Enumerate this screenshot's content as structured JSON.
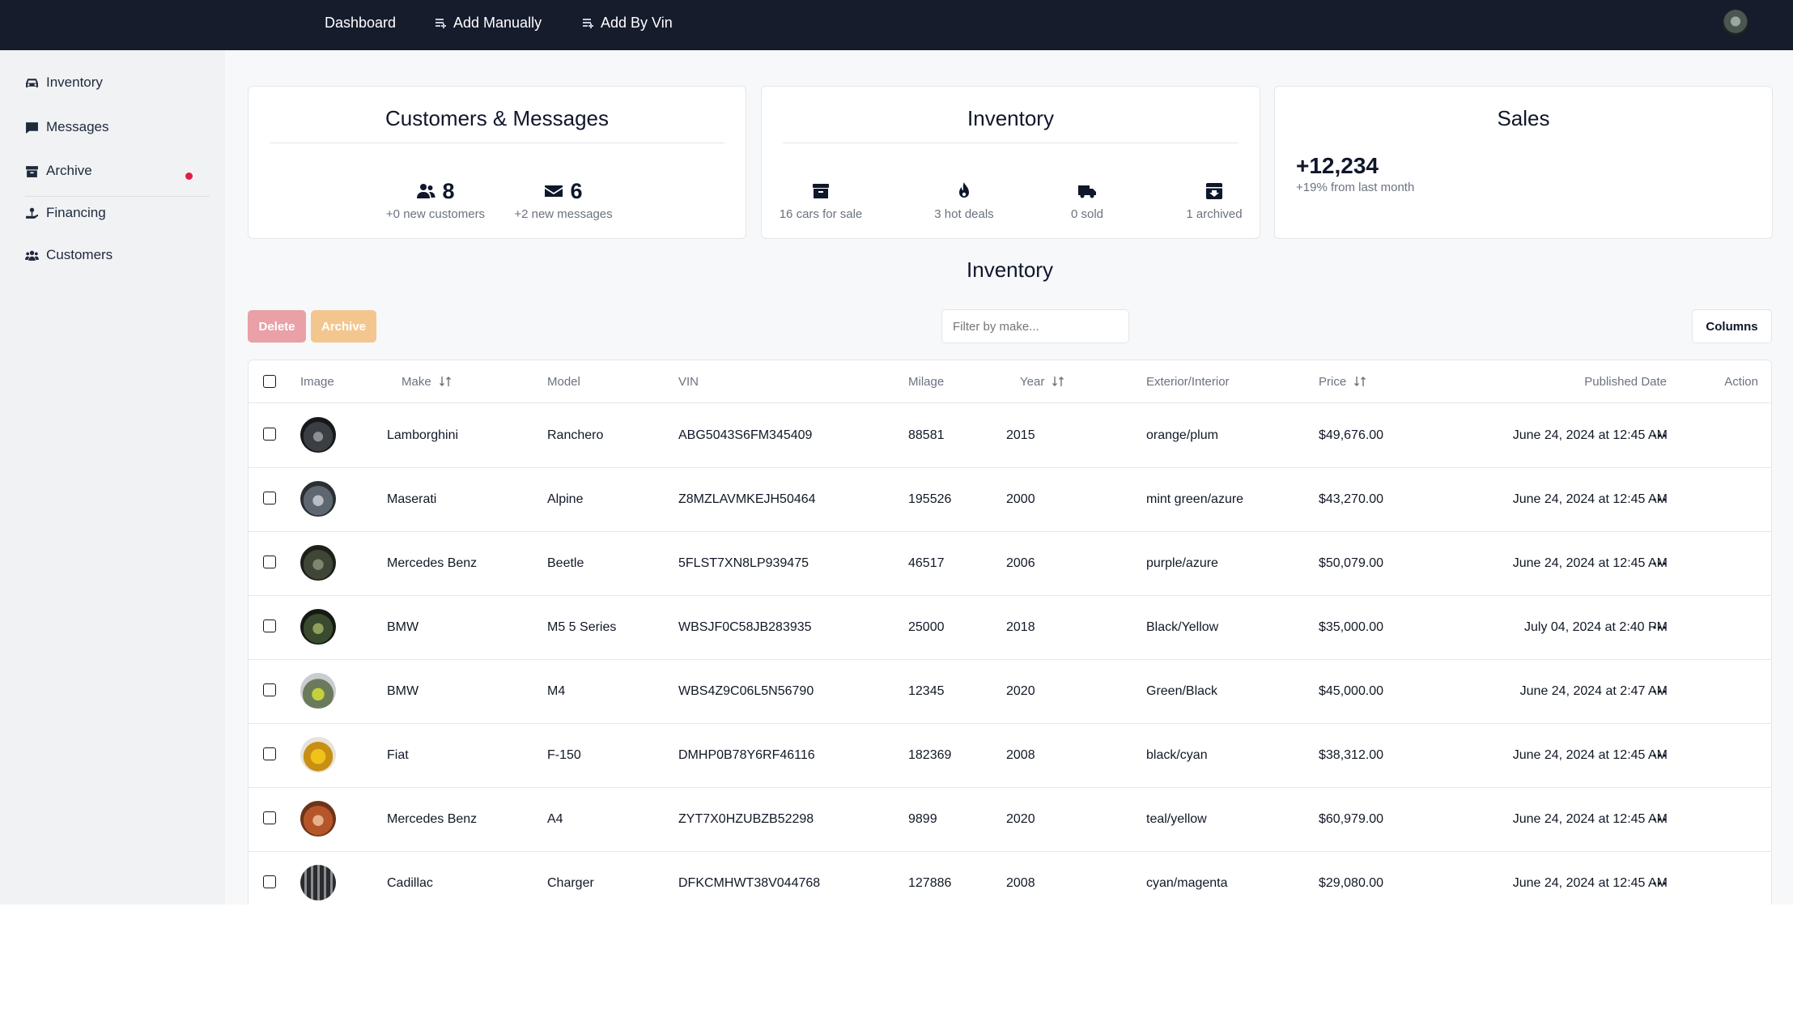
{
  "topnav": {
    "dashboard": "Dashboard",
    "add_manually": "Add Manually",
    "add_by_vin": "Add By Vin"
  },
  "sidebar": {
    "items": [
      {
        "label": "Inventory",
        "icon": "car-icon"
      },
      {
        "label": "Messages",
        "icon": "message-icon"
      },
      {
        "label": "Archive",
        "icon": "archive-icon"
      },
      {
        "label": "Financing",
        "icon": "financing-icon"
      },
      {
        "label": "Customers",
        "icon": "users-icon"
      }
    ]
  },
  "cards": {
    "customers": {
      "title": "Customers & Messages",
      "customers_count": "8",
      "customers_caption": "+0 new customers",
      "messages_count": "6",
      "messages_caption": "+2 new messages"
    },
    "inventory": {
      "title": "Inventory",
      "stats": [
        {
          "caption": "16 cars for sale",
          "icon": "box-icon"
        },
        {
          "caption": "3 hot deals",
          "icon": "fire-icon"
        },
        {
          "caption": "0 sold",
          "icon": "truck-icon"
        },
        {
          "caption": "1 archived",
          "icon": "archive-box-icon"
        }
      ]
    },
    "sales": {
      "title": "Sales",
      "value": "+12,234",
      "caption": "+19% from last month"
    }
  },
  "section": {
    "title": "Inventory"
  },
  "toolbar": {
    "delete": "Delete",
    "archive": "Archive",
    "filter_placeholder": "Filter by make...",
    "columns": "Columns"
  },
  "colors": {
    "topbar": "#151c2c",
    "delete": "#e9a0a6",
    "archive": "#f3c68f",
    "accent_dot": "#e11d48"
  },
  "table": {
    "headers": {
      "image": "Image",
      "make": "Make",
      "model": "Model",
      "vin": "VIN",
      "milage": "Milage",
      "year": "Year",
      "exterior_interior": "Exterior/Interior",
      "price": "Price",
      "published": "Published Date",
      "action": "Action"
    },
    "rows": [
      {
        "make": "Lamborghini",
        "model": "Ranchero",
        "vin": "ABG5043S6FM345409",
        "milage": "88581",
        "year": "2015",
        "colors": "orange/plum",
        "price": "$49,676.00",
        "published": "June 24, 2024 at 12:45 AM"
      },
      {
        "make": "Maserati",
        "model": "Alpine",
        "vin": "Z8MZLAVMKEJH50464",
        "milage": "195526",
        "year": "2000",
        "colors": "mint green/azure",
        "price": "$43,270.00",
        "published": "June 24, 2024 at 12:45 AM"
      },
      {
        "make": "Mercedes Benz",
        "model": "Beetle",
        "vin": "5FLST7XN8LP939475",
        "milage": "46517",
        "year": "2006",
        "colors": "purple/azure",
        "price": "$50,079.00",
        "published": "June 24, 2024 at 12:45 AM"
      },
      {
        "make": "BMW",
        "model": "M5 5 Series",
        "vin": "WBSJF0C58JB283935",
        "milage": "25000",
        "year": "2018",
        "colors": "Black/Yellow",
        "price": "$35,000.00",
        "published": "July 04, 2024 at 2:40 PM"
      },
      {
        "make": "BMW",
        "model": "M4",
        "vin": "WBS4Z9C06L5N56790",
        "milage": "12345",
        "year": "2020",
        "colors": "Green/Black",
        "price": "$45,000.00",
        "published": "June 24, 2024 at 2:47 AM"
      },
      {
        "make": "Fiat",
        "model": "F-150",
        "vin": "DMHP0B78Y6RF46116",
        "milage": "182369",
        "year": "2008",
        "colors": "black/cyan",
        "price": "$38,312.00",
        "published": "June 24, 2024 at 12:45 AM"
      },
      {
        "make": "Mercedes Benz",
        "model": "A4",
        "vin": "ZYT7X0HZUBZB52298",
        "milage": "9899",
        "year": "2020",
        "colors": "teal/yellow",
        "price": "$60,979.00",
        "published": "June 24, 2024 at 12:45 AM"
      },
      {
        "make": "Cadillac",
        "model": "Charger",
        "vin": "DFKCMHWT38V044768",
        "milage": "127886",
        "year": "2008",
        "colors": "cyan/magenta",
        "price": "$29,080.00",
        "published": "June 24, 2024 at 12:45 AM"
      }
    ]
  }
}
